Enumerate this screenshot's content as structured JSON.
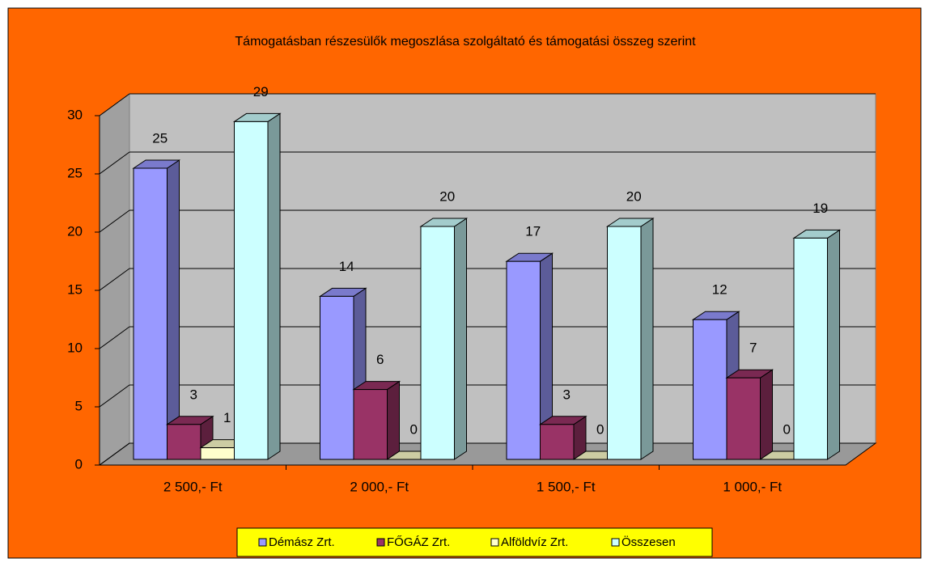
{
  "chart_data": {
    "type": "bar3d",
    "title": "Támogatásban  részesülők megoszlása  szolgáltató  és támogatási összeg szerint",
    "categories": [
      "2 500,- Ft",
      "2 000,- Ft",
      "1 500,- Ft",
      "1 000,- Ft"
    ],
    "series": [
      {
        "name": "Démász Zrt.",
        "color": "#9999FF",
        "values": [
          25,
          14,
          17,
          12
        ]
      },
      {
        "name": "FŐGÁZ Zrt.",
        "color": "#993366",
        "values": [
          3,
          6,
          3,
          7
        ]
      },
      {
        "name": "Alföldvíz Zrt.",
        "color": "#FFFFCC",
        "values": [
          1,
          0,
          0,
          0
        ]
      },
      {
        "name": "Összesen",
        "color": "#CCFFFF",
        "values": [
          29,
          20,
          20,
          19
        ]
      }
    ],
    "ylim": [
      0,
      30
    ],
    "yticks": [
      0,
      5,
      10,
      15,
      20,
      25,
      30
    ],
    "grid": true,
    "legend": "bottom"
  }
}
